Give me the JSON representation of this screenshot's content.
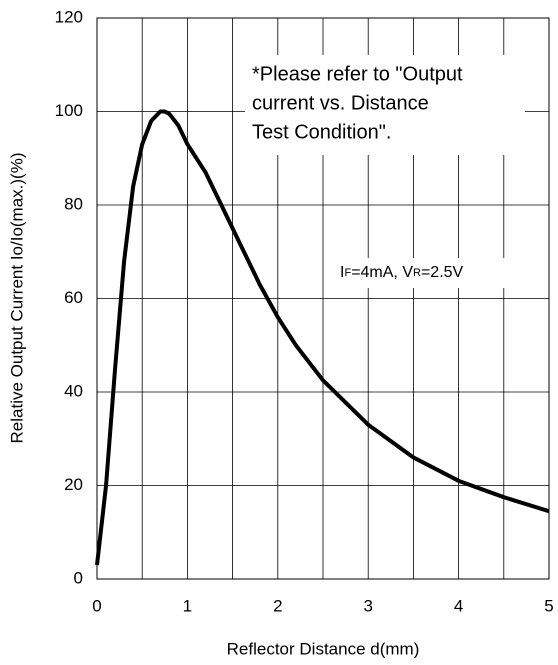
{
  "chart_data": {
    "type": "line",
    "xlabel": "Reflector Distance d(mm)",
    "ylabel": "Relative Output Current Io/Io(max.)(%)",
    "annotation": [
      "*Please refer to \"Output",
      "current vs. Distance",
      "Test Condition\"."
    ],
    "condition": [
      {
        "text": "I"
      },
      {
        "text": "F",
        "sub": true
      },
      {
        "text": "=4mA, V"
      },
      {
        "text": "R",
        "sub": true
      },
      {
        "text": "=2.5V"
      }
    ],
    "x": [
      0,
      0.1,
      0.2,
      0.3,
      0.4,
      0.5,
      0.6,
      0.7,
      0.75,
      0.8,
      0.9,
      1.0,
      1.2,
      1.4,
      1.5,
      1.6,
      1.8,
      2.0,
      2.2,
      2.5,
      3.0,
      3.5,
      4.0,
      4.5,
      5.0
    ],
    "series": [
      {
        "name": "Io",
        "color": "#000000",
        "values": [
          3,
          20,
          45,
          68,
          84,
          93,
          98,
          100,
          100,
          99.5,
          97,
          93,
          87,
          79,
          75,
          71,
          63,
          56,
          50,
          42.5,
          33,
          26,
          21,
          17.5,
          14.5
        ]
      }
    ],
    "xlim": [
      0,
      5
    ],
    "xticks": [
      0,
      1,
      2,
      3,
      4,
      5
    ],
    "x_minor_grid": [
      0.5,
      1.5,
      2.5,
      3.5,
      4.5
    ],
    "ylim": [
      0,
      120
    ],
    "yticks": [
      0,
      20,
      40,
      60,
      80,
      100,
      120
    ],
    "grid": true
  }
}
